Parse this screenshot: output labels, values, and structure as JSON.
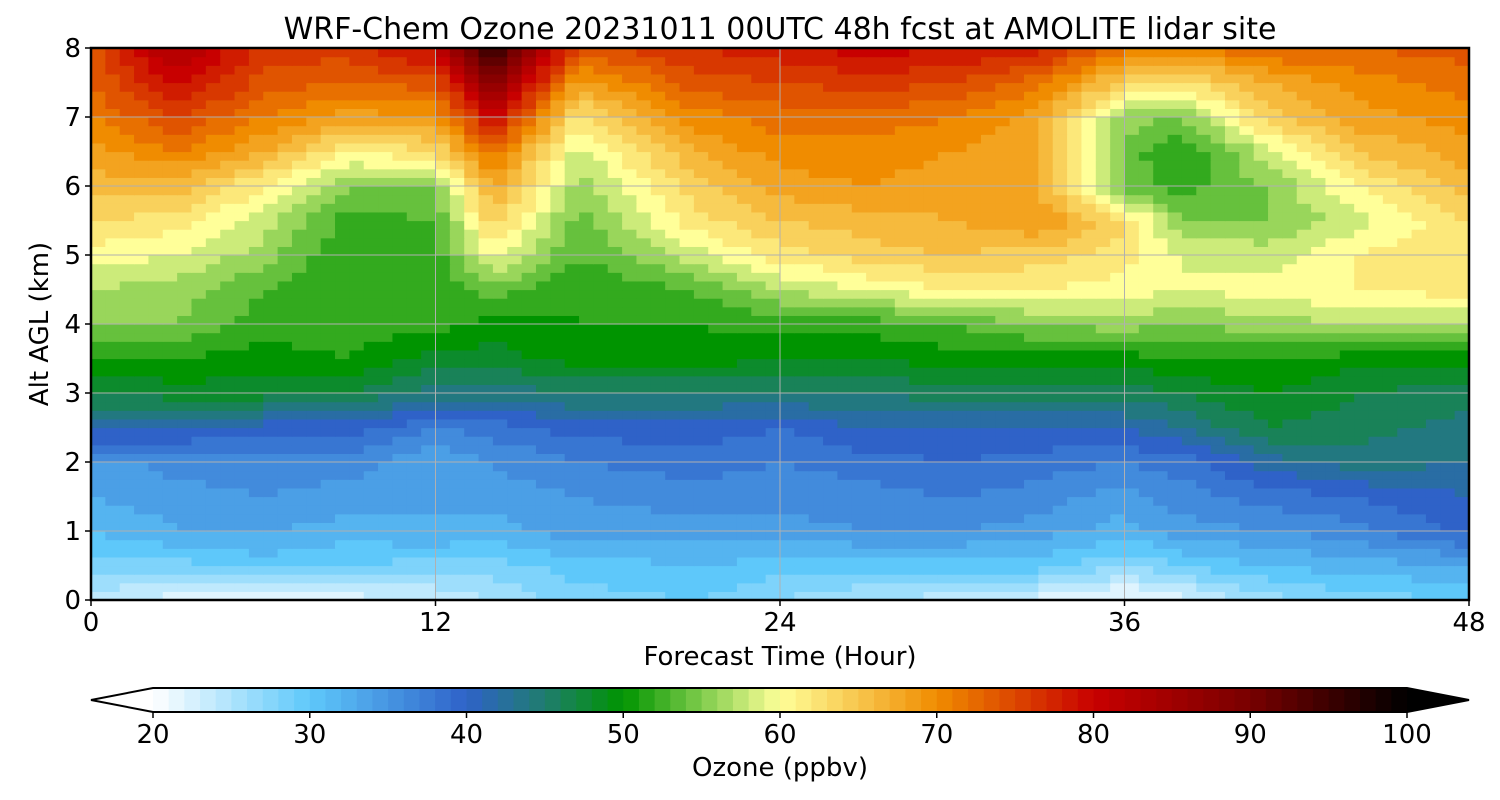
{
  "chart_data": {
    "type": "heatmap",
    "title": "WRF-Chem Ozone  20231011 00UTC 48h fcst at AMOLITE lidar site",
    "xlabel": "Forecast Time (Hour)",
    "ylabel": "Alt AGL (km)",
    "xlim": [
      0,
      48
    ],
    "ylim": [
      0,
      8
    ],
    "x_ticks": [
      0,
      12,
      24,
      36,
      48
    ],
    "y_ticks": [
      0,
      1,
      2,
      3,
      4,
      5,
      6,
      7,
      8
    ],
    "grid": true,
    "colorbar": {
      "label": "Ozone  (ppbv)",
      "range": [
        20,
        100
      ],
      "ticks": [
        20,
        30,
        40,
        50,
        60,
        70,
        80,
        90,
        100
      ],
      "extend": "both",
      "colors": [
        {
          "v": 20,
          "c": "#ffffff"
        },
        {
          "v": 30,
          "c": "#5ec8fa"
        },
        {
          "v": 40,
          "c": "#2f62c8"
        },
        {
          "v": 45,
          "c": "#1f7d6e"
        },
        {
          "v": 50,
          "c": "#009400"
        },
        {
          "v": 55,
          "c": "#7fcc4c"
        },
        {
          "v": 60,
          "c": "#ffff99"
        },
        {
          "v": 70,
          "c": "#f08c00"
        },
        {
          "v": 80,
          "c": "#c80000"
        },
        {
          "v": 90,
          "c": "#780000"
        },
        {
          "v": 100,
          "c": "#000000"
        }
      ]
    },
    "x": [
      0,
      3,
      6,
      9,
      12,
      14,
      17,
      21,
      24,
      27,
      30,
      33,
      36,
      38,
      41,
      44,
      48
    ],
    "y": [
      0,
      0.5,
      1,
      1.5,
      2,
      2.5,
      3,
      3.5,
      4,
      4.5,
      5,
      5.5,
      6,
      6.5,
      7,
      7.5,
      8
    ],
    "z": [
      [
        24,
        22,
        22,
        22,
        23,
        25,
        28,
        29,
        27,
        25,
        24,
        22,
        20,
        22,
        26,
        28,
        29
      ],
      [
        28,
        28,
        30,
        29,
        28,
        28,
        30,
        31,
        30,
        30,
        30,
        30,
        27,
        29,
        31,
        32,
        33
      ],
      [
        31,
        33,
        33,
        32,
        33,
        32,
        34,
        34,
        34,
        35,
        35,
        34,
        32,
        34,
        35,
        36,
        40
      ],
      [
        33,
        34,
        35,
        34,
        33,
        34,
        35,
        36,
        36,
        36,
        37,
        36,
        34,
        36,
        38,
        39,
        41
      ],
      [
        34,
        36,
        36,
        36,
        33,
        35,
        37,
        38,
        37,
        38,
        39,
        38,
        37,
        38,
        42,
        44,
        43
      ],
      [
        42,
        41,
        40,
        40,
        37,
        38,
        40,
        40,
        39,
        41,
        41,
        41,
        41,
        43,
        47,
        46,
        44
      ],
      [
        47,
        48,
        48,
        47,
        44,
        44,
        45,
        45,
        45,
        45,
        46,
        46,
        46,
        47,
        49,
        47,
        46
      ],
      [
        51,
        51,
        50,
        51,
        48,
        48,
        50,
        50,
        49,
        49,
        50,
        50,
        50,
        51,
        51,
        50,
        50
      ],
      [
        55,
        55,
        52,
        52,
        52,
        50,
        51,
        51,
        52,
        52,
        53,
        55,
        56,
        55,
        56,
        57,
        57
      ],
      [
        57,
        56,
        53,
        51,
        51,
        54,
        51,
        53,
        57,
        59,
        61,
        61,
        60,
        59,
        60,
        61,
        62
      ],
      [
        60,
        59,
        56,
        51,
        52,
        60,
        53,
        58,
        62,
        64,
        65,
        64,
        62,
        59,
        58,
        61,
        63
      ],
      [
        63,
        62,
        58,
        52,
        53,
        64,
        54,
        62,
        65,
        66,
        67,
        69,
        63,
        55,
        55,
        58,
        63
      ],
      [
        66,
        66,
        61,
        55,
        55,
        68,
        56,
        64,
        68,
        69,
        68,
        67,
        54,
        52,
        55,
        61,
        66
      ],
      [
        68,
        71,
        67,
        61,
        63,
        72,
        58,
        67,
        70,
        70,
        69,
        67,
        54,
        51,
        58,
        65,
        68
      ],
      [
        71,
        75,
        71,
        68,
        69,
        80,
        62,
        70,
        72,
        72,
        71,
        68,
        56,
        55,
        64,
        68,
        70
      ],
      [
        73,
        80,
        74,
        73,
        74,
        88,
        68,
        74,
        75,
        76,
        75,
        72,
        64,
        62,
        67,
        70,
        72
      ],
      [
        74,
        84,
        76,
        76,
        80,
        96,
        74,
        77,
        78,
        80,
        79,
        78,
        72,
        71,
        73,
        73,
        74
      ]
    ]
  }
}
